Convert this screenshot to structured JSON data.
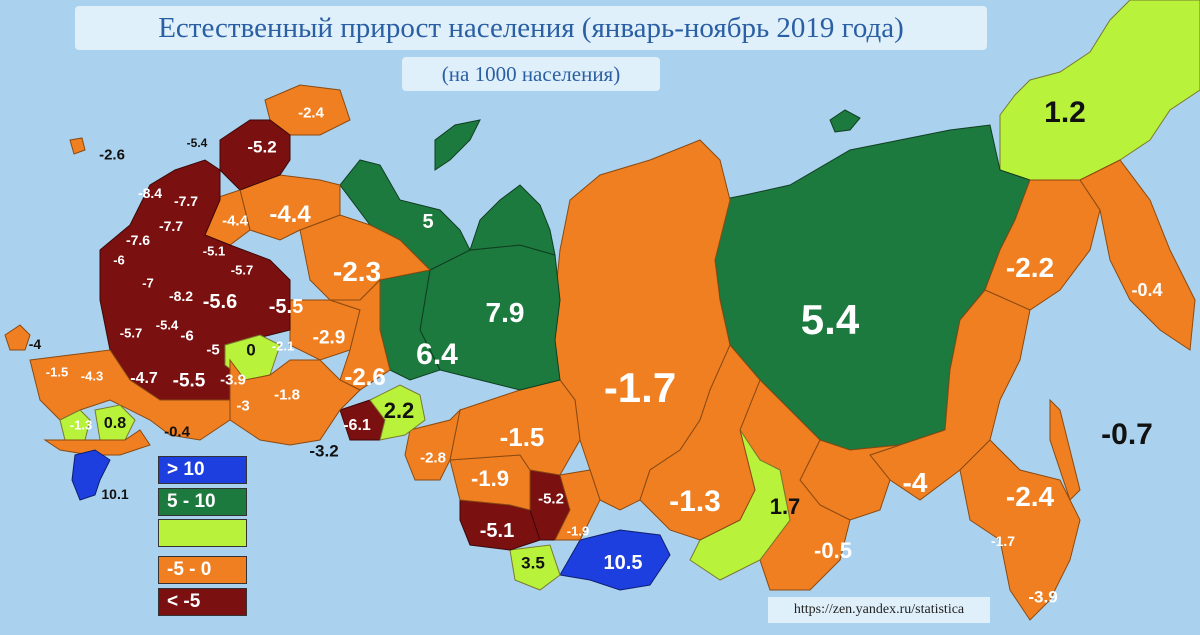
{
  "title": "Естественный прирост населения (январь-ноябрь 2019 года)",
  "subtitle": "(на 1000 населения)",
  "source": "https://zen.yandex.ru/statistica",
  "colors": {
    "sea": "#aad2ee",
    "gt10": "#1d3fe0",
    "r5_10": "#1c7a3e",
    "r0_5": "#b9f23a",
    "m5_0": "#f07f21",
    "lt_m5": "#7a1010"
  },
  "legend": [
    {
      "label": "> 10",
      "color": "#1d3fe0"
    },
    {
      "label": "5 - 10",
      "color": "#1c7a3e"
    },
    {
      "label": "",
      "color": "#b9f23a"
    },
    {
      "label": "-5 - 0",
      "color": "#f07f21"
    },
    {
      "label": "< -5",
      "color": "#7a1010"
    }
  ],
  "regions": {
    "chukotka": "1.2",
    "yakutia": "5.4",
    "krasnoyarsk": "-1.7",
    "khanty": "7.9",
    "yamal": "5",
    "tyumen": "6.4",
    "komi": "-2.3",
    "arkhangelsk": "-4.4",
    "murmansk": "-2.4",
    "karelia": "-5.2",
    "kamchatka": "-0.4",
    "magadan": "-2.2",
    "khabarovsk": "-4",
    "sakhalin": "-0.7",
    "amur": "-2.4",
    "jewish": "-1.7",
    "primorye": "-3.9",
    "zabaikalye": "-0.5",
    "buryatia": "1.7",
    "irkutsk": "-1.3",
    "tuva": "10.5",
    "altai_rep": "3.5",
    "altai_krai": "-5.1",
    "kemerovo": "-5.2",
    "khakassia": "-1.9",
    "novosibirsk": "-1.9",
    "tomsk": "-1.5",
    "omsk": "-2.8",
    "kurgan": "-6.1",
    "chelyabinsk": "-3.2",
    "kostroma": "-5.5",
    "kirov": "-2.9",
    "perm": "-2.6",
    "udmurtia": "-2.1",
    "tatarstan": "0",
    "bashkortostan": "-1.8",
    "orenburg": "-3",
    "saratov": "-3.9",
    "penza": "-5.5",
    "volgograd": "-4.7",
    "rostov": "-4.3",
    "krasnodar": "-1.5",
    "crimea": "-4",
    "kaliningrad": "-2.6",
    "pskov": "-8.4",
    "novgorod": "-7.7",
    "tver": "-7.7",
    "smolensk": "-7.6",
    "bryansk": "-6",
    "kaluga": "-7",
    "tula": "-8.2",
    "ryazan": "-5.6",
    "vladimir": "-5.7",
    "yaroslavl": "-5.1",
    "vologda": "-4.4",
    "lenobl": "-5.4",
    "kursk": "-5.7",
    "lipetsk": "-5.4",
    "tambov": "-6",
    "mordovia": "-5",
    "chuvashia": "-5.5",
    "kalmykia": "-1.3",
    "stavropol": "0.8",
    "dagestan": "10.1",
    "astrakhan": "-0.4",
    "ingush": "-3"
  }
}
